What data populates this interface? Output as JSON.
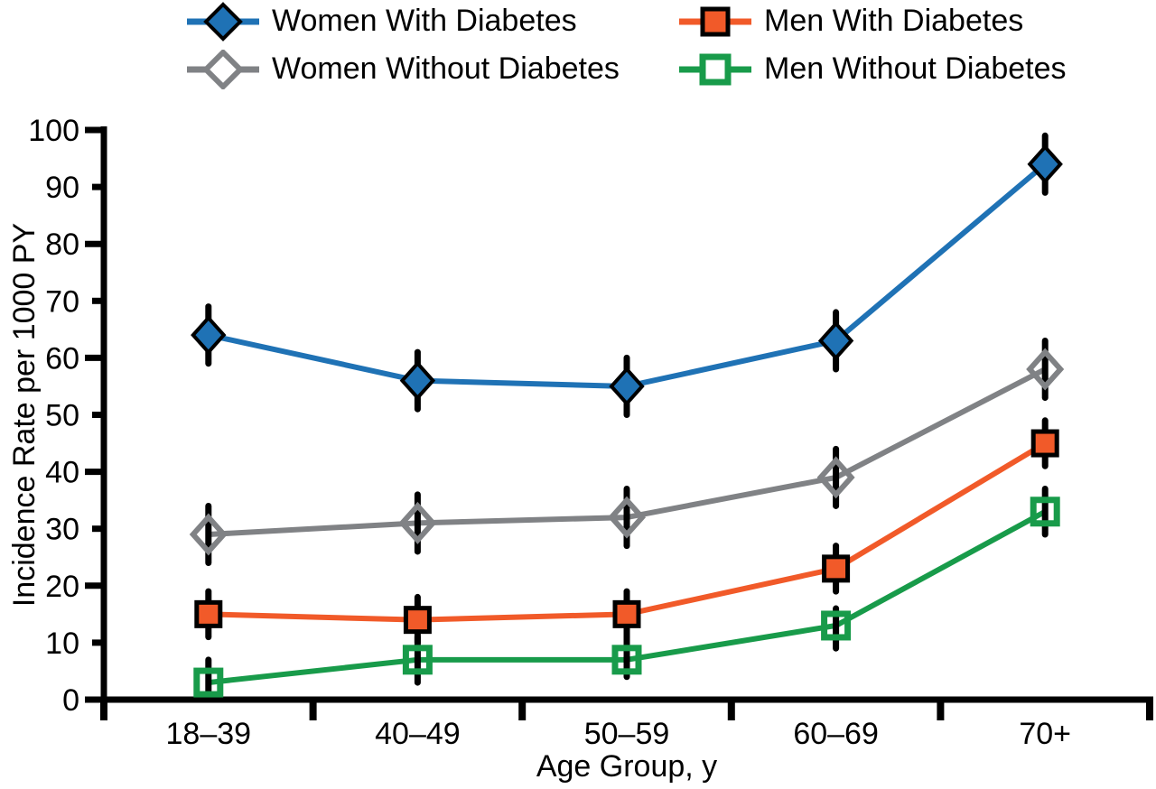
{
  "chart_data": {
    "type": "line",
    "title": "",
    "xlabel": "Age Group, y",
    "ylabel": "Incidence Rate per 1000 PY",
    "categories": [
      "18–39",
      "40–49",
      "50–59",
      "60–69",
      "70+"
    ],
    "ylim": [
      0,
      100
    ],
    "yticks": [
      0,
      10,
      20,
      30,
      40,
      50,
      60,
      70,
      80,
      90,
      100
    ],
    "grid": false,
    "legend_position": "top",
    "error_bars": true,
    "axis_color": "#000000",
    "series": [
      {
        "name": "Women With Diabetes",
        "marker": "diamond-filled",
        "color": "#1F72B5",
        "values": [
          64,
          56,
          55,
          63,
          94
        ],
        "ci": [
          [
            59,
            69
          ],
          [
            51,
            61
          ],
          [
            50,
            60
          ],
          [
            58,
            68
          ],
          [
            89,
            99
          ]
        ]
      },
      {
        "name": "Men With Diabetes",
        "marker": "square-filled",
        "color": "#F15A29",
        "values": [
          15,
          14,
          15,
          23,
          45
        ],
        "ci": [
          [
            11,
            19
          ],
          [
            10,
            18
          ],
          [
            11,
            19
          ],
          [
            19,
            27
          ],
          [
            41,
            49
          ]
        ]
      },
      {
        "name": "Women Without Diabetes",
        "marker": "diamond-open",
        "color": "#808285",
        "values": [
          29,
          31,
          32,
          39,
          58
        ],
        "ci": [
          [
            24,
            34
          ],
          [
            26,
            36
          ],
          [
            27,
            37
          ],
          [
            34,
            44
          ],
          [
            53,
            63
          ]
        ]
      },
      {
        "name": "Men Without Diabetes",
        "marker": "square-open",
        "color": "#189B4A",
        "values": [
          3,
          7,
          7,
          13,
          33
        ],
        "ci": [
          [
            0,
            7
          ],
          [
            3,
            11
          ],
          [
            4,
            11
          ],
          [
            9,
            16
          ],
          [
            29,
            37
          ]
        ]
      }
    ]
  }
}
